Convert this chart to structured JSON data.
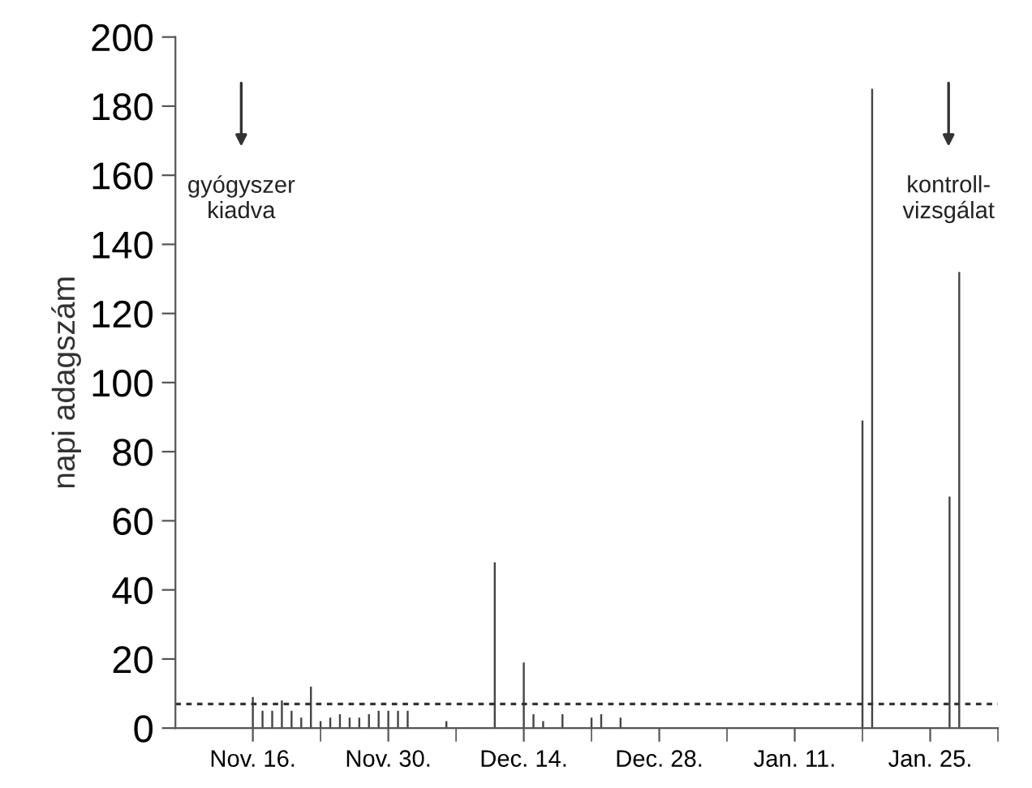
{
  "chart_data": {
    "type": "bar",
    "ylabel": "napi adagszám",
    "categories": [
      null,
      null,
      null,
      null,
      null,
      null,
      null,
      null,
      "Nov. 16.",
      null,
      null,
      null,
      null,
      null,
      null,
      null,
      null,
      null,
      null,
      null,
      null,
      null,
      "Nov. 30.",
      null,
      null,
      null,
      null,
      null,
      null,
      null,
      null,
      null,
      null,
      null,
      null,
      null,
      "Dec. 14.",
      null,
      null,
      null,
      null,
      null,
      null,
      null,
      null,
      null,
      null,
      null,
      null,
      null,
      "Dec. 28.",
      null,
      null,
      null,
      null,
      null,
      null,
      null,
      null,
      null,
      null,
      null,
      null,
      null,
      "Jan. 11.",
      null,
      null,
      null,
      null,
      null,
      null,
      null,
      null,
      null,
      null,
      null,
      null,
      null,
      "Jan. 25.",
      null,
      null,
      null,
      null,
      null,
      null,
      null
    ],
    "values": [
      null,
      null,
      null,
      null,
      null,
      null,
      null,
      null,
      9,
      5,
      5,
      8,
      5,
      3,
      12,
      2,
      3,
      4,
      3,
      3,
      4,
      5,
      5,
      5,
      5,
      null,
      null,
      null,
      2,
      null,
      null,
      null,
      null,
      48,
      null,
      null,
      19,
      4,
      2,
      null,
      4,
      null,
      null,
      3,
      4,
      null,
      3,
      null,
      null,
      null,
      null,
      null,
      null,
      null,
      null,
      null,
      null,
      null,
      null,
      null,
      null,
      null,
      null,
      null,
      null,
      null,
      null,
      null,
      null,
      null,
      null,
      89,
      185,
      null,
      null,
      null,
      null,
      null,
      null,
      null,
      67,
      132,
      null,
      null,
      null,
      null
    ],
    "color": "#444444",
    "ylim": [
      0,
      200
    ],
    "yticks": [
      0,
      20,
      40,
      60,
      80,
      100,
      120,
      140,
      160,
      180,
      200
    ],
    "ref_lines": [
      {
        "axis": "y",
        "value": 7,
        "line_style": "dotted",
        "color": "#333333"
      }
    ],
    "annotations": [
      "gyógyszer\nkiadva",
      "kontroll-\nvizsgálat"
    ],
    "grid": false,
    "legend": false
  }
}
